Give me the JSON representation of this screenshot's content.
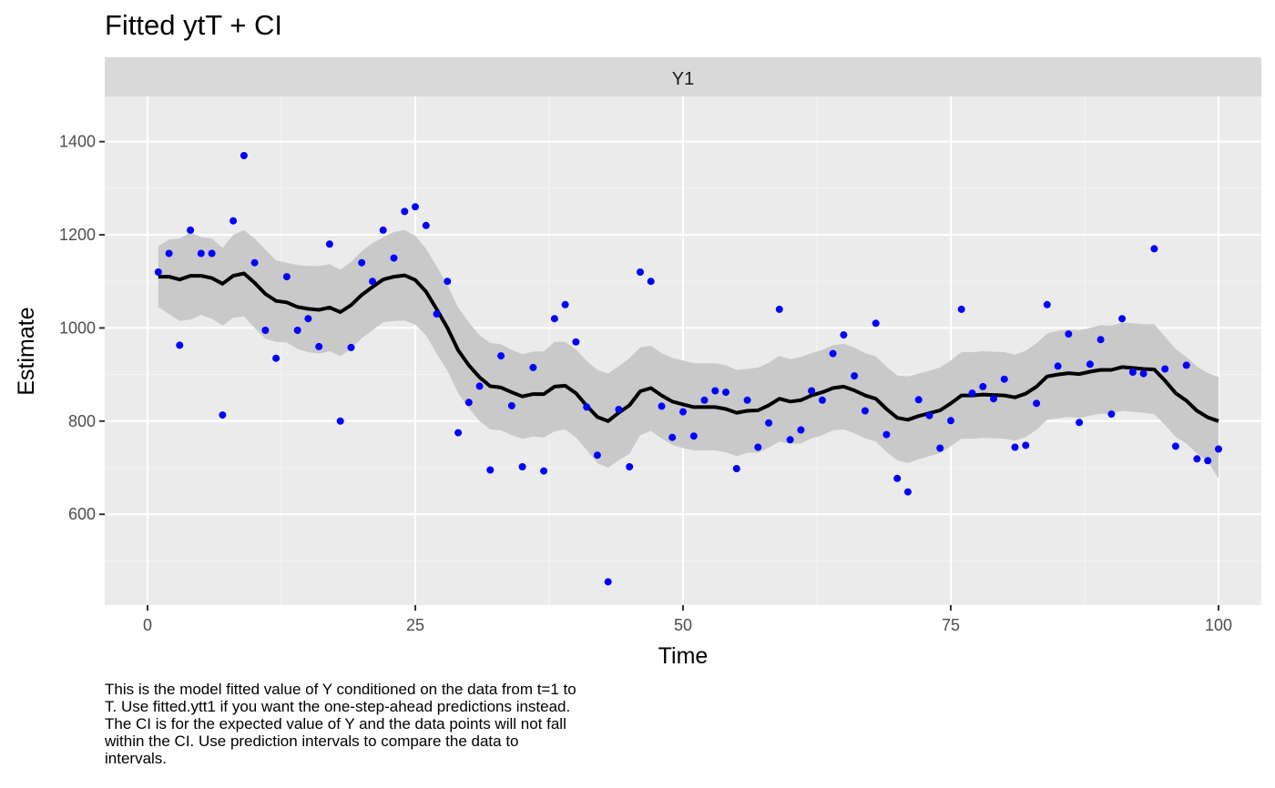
{
  "chart_data": {
    "type": "line",
    "title": "Fitted ytT + CI",
    "facet_label": "Y1",
    "xlabel": "Time",
    "ylabel": "Estimate",
    "xlim": [
      -4,
      104
    ],
    "ylim": [
      405,
      1497
    ],
    "x_ticks": [
      0,
      25,
      50,
      75,
      100
    ],
    "y_ticks": [
      600,
      800,
      1000,
      1200,
      1400
    ],
    "x_tick_labels": [
      "0",
      "25",
      "50",
      "75",
      "100"
    ],
    "y_tick_labels": [
      "600",
      "800",
      "1000",
      "1200",
      "1400"
    ],
    "grid": true,
    "legend": "none",
    "colors": {
      "points": "#0000ff",
      "fitted": "#000000",
      "ci_band": "#cccccc",
      "panel": "#ebebeb",
      "strip": "#d9d9d9"
    },
    "x": [
      1,
      2,
      3,
      4,
      5,
      6,
      7,
      8,
      9,
      10,
      11,
      12,
      13,
      14,
      15,
      16,
      17,
      18,
      19,
      20,
      21,
      22,
      23,
      24,
      25,
      26,
      27,
      28,
      29,
      30,
      31,
      32,
      33,
      34,
      35,
      36,
      37,
      38,
      39,
      40,
      41,
      42,
      43,
      44,
      45,
      46,
      47,
      48,
      49,
      50,
      51,
      52,
      53,
      54,
      55,
      56,
      57,
      58,
      59,
      60,
      61,
      62,
      63,
      64,
      65,
      66,
      67,
      68,
      69,
      70,
      71,
      72,
      73,
      74,
      75,
      76,
      77,
      78,
      79,
      80,
      81,
      82,
      83,
      84,
      85,
      86,
      87,
      88,
      89,
      90,
      91,
      92,
      93,
      94,
      95,
      96,
      97,
      98,
      99,
      100
    ],
    "series": [
      {
        "type": "scatter",
        "values": [
          1120,
          1160,
          963,
          1210,
          1160,
          1160,
          813,
          1230,
          1370,
          1140,
          995,
          935,
          1110,
          995,
          1020,
          960,
          1180,
          800,
          958,
          1140,
          1100,
          1210,
          1150,
          1250,
          1260,
          1220,
          1030,
          1100,
          775,
          840,
          875,
          695,
          940,
          833,
          702,
          915,
          693,
          1020,
          1050,
          970,
          830,
          727,
          455,
          825,
          702,
          1120,
          1100,
          832,
          765,
          820,
          768,
          845,
          865,
          862,
          698,
          845,
          744,
          796,
          1040,
          760,
          781,
          865,
          845,
          945,
          985,
          897,
          822,
          1010,
          771,
          677,
          648,
          846,
          812,
          742,
          801,
          1040,
          860,
          874,
          848,
          890,
          744,
          748,
          838,
          1050,
          918,
          987,
          797,
          922,
          975,
          815,
          1020,
          905,
          902,
          1170,
          912,
          746,
          920,
          719,
          715,
          740
        ]
      },
      {
        "type": "line",
        "values": [
          1110,
          1110,
          1104,
          1112,
          1112,
          1107,
          1095,
          1112,
          1117,
          1097,
          1073,
          1058,
          1055,
          1045,
          1041,
          1039,
          1044,
          1034,
          1049,
          1071,
          1088,
          1104,
          1110,
          1113,
          1103,
          1078,
          1040,
          1000,
          952,
          920,
          894,
          875,
          872,
          862,
          853,
          858,
          858,
          874,
          876,
          860,
          833,
          809,
          800,
          818,
          834,
          864,
          871,
          855,
          842,
          836,
          830,
          830,
          830,
          826,
          818,
          822,
          823,
          834,
          848,
          842,
          845,
          855,
          862,
          871,
          874,
          866,
          855,
          848,
          826,
          807,
          803,
          811,
          817,
          823,
          838,
          855,
          855,
          857,
          856,
          855,
          851,
          859,
          874,
          896,
          900,
          903,
          901,
          906,
          910,
          910,
          916,
          914,
          912,
          911,
          887,
          860,
          844,
          822,
          808,
          800
        ]
      }
    ],
    "ci_upper": [
      1175,
      1190,
      1192,
      1205,
      1195,
      1192,
      1172,
      1200,
      1210,
      1192,
      1168,
      1145,
      1140,
      1135,
      1133,
      1133,
      1137,
      1125,
      1142,
      1165,
      1182,
      1195,
      1206,
      1210,
      1198,
      1170,
      1132,
      1092,
      1044,
      1012,
      984,
      968,
      965,
      953,
      944,
      949,
      950,
      970,
      970,
      954,
      929,
      910,
      902,
      918,
      935,
      958,
      962,
      946,
      936,
      930,
      924,
      924,
      924,
      920,
      910,
      912,
      915,
      925,
      940,
      933,
      938,
      946,
      953,
      963,
      966,
      958,
      946,
      939,
      917,
      898,
      896,
      902,
      908,
      915,
      930,
      948,
      948,
      950,
      949,
      948,
      943,
      951,
      967,
      988,
      994,
      997,
      995,
      1000,
      1006,
      1005,
      1012,
      1010,
      1008,
      1008,
      981,
      955,
      938,
      917,
      903,
      895
    ],
    "ci_lower": [
      1045,
      1030,
      1015,
      1018,
      1028,
      1020,
      1005,
      1022,
      1025,
      1000,
      977,
      970,
      969,
      955,
      948,
      945,
      950,
      940,
      955,
      978,
      995,
      1012,
      1015,
      1016,
      1007,
      984,
      945,
      908,
      860,
      828,
      800,
      782,
      780,
      770,
      762,
      767,
      765,
      778,
      782,
      765,
      738,
      710,
      700,
      716,
      730,
      770,
      779,
      763,
      749,
      742,
      737,
      737,
      737,
      733,
      725,
      732,
      732,
      743,
      756,
      751,
      752,
      763,
      770,
      780,
      782,
      774,
      763,
      756,
      734,
      716,
      710,
      718,
      725,
      731,
      746,
      762,
      762,
      764,
      763,
      762,
      758,
      766,
      781,
      803,
      806,
      809,
      807,
      812,
      816,
      815,
      822,
      820,
      818,
      815,
      792,
      766,
      752,
      730,
      714,
      676
    ]
  },
  "caption_lines": [
    "This is the model fitted value of Y conditioned on the data from t=1 to",
    "T. Use fitted.ytt1 if you want the one-step-ahead predictions instead.",
    "The CI is for the expected value of Y and the data points will not fall",
    "within the CI. Use prediction intervals to compare the data to",
    "intervals."
  ]
}
